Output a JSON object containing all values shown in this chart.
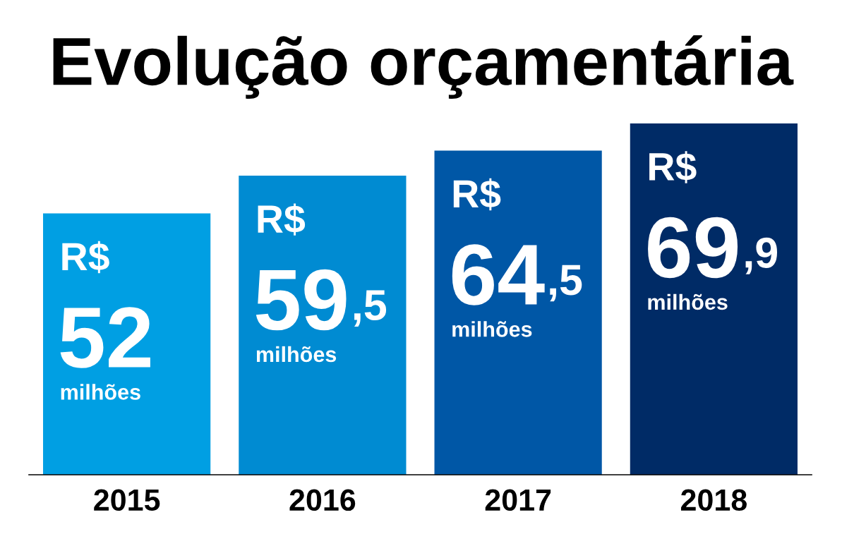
{
  "chart_data": {
    "type": "bar",
    "title": "Evolução orçamentária",
    "categories": [
      "2015",
      "2016",
      "2017",
      "2018"
    ],
    "values": [
      52,
      59.5,
      64.5,
      69.9
    ],
    "colors": [
      "#009fe3",
      "#008bd2",
      "#0057a6",
      "#002b66"
    ],
    "value_labels": [
      "R$\n52\nmilhões",
      "R$\n59,5\nmilhões",
      "R$\n64,5\nmilhões",
      "R$\n69,9\nmilhões"
    ],
    "grid": false,
    "legend": false
  }
}
